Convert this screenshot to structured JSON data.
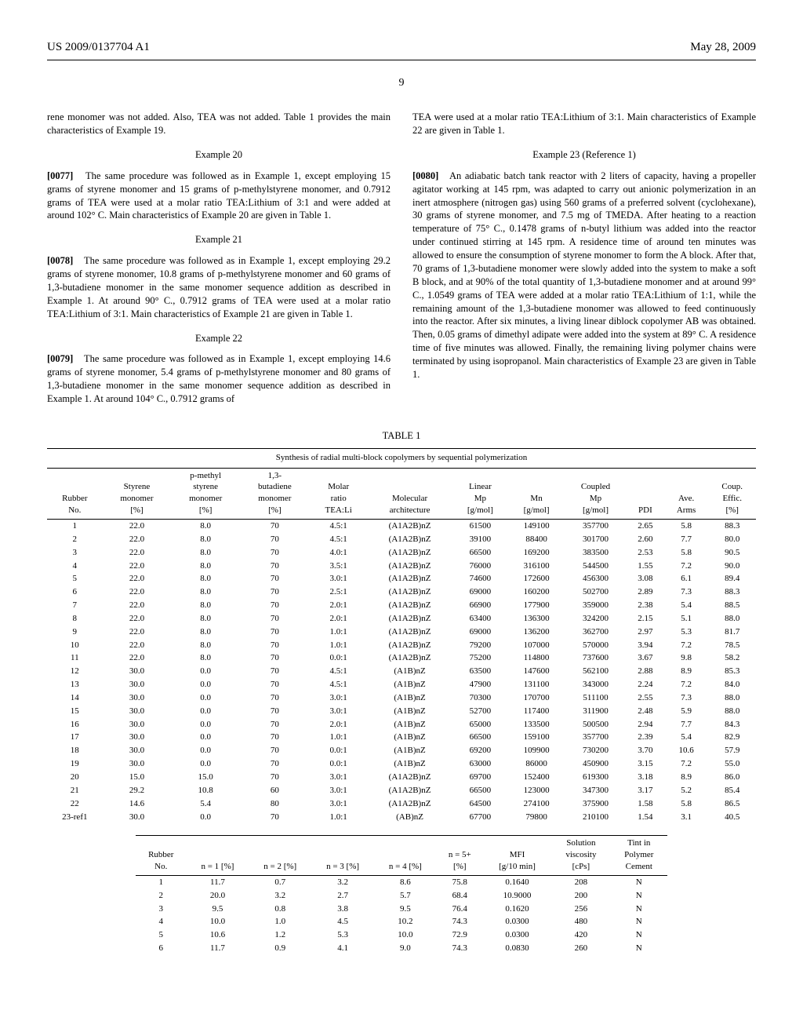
{
  "header": {
    "docno": "US 2009/0137704 A1",
    "date": "May 28, 2009",
    "pageno": "9"
  },
  "col1": {
    "intro": "rene monomer was not added. Also, TEA was not added. Table 1 provides the main characteristics of Example 19.",
    "ex20_title": "Example 20",
    "p77_num": "[0077]",
    "p77": "The same procedure was followed as in Example 1, except employing 15 grams of styrene monomer and 15 grams of p-methylstyrene monomer, and 0.7912 grams of TEA were used at a molar ratio TEA:Lithium of 3:1 and were added at around 102° C. Main characteristics of Example 20 are given in Table 1.",
    "ex21_title": "Example 21",
    "p78_num": "[0078]",
    "p78": "The same procedure was followed as in Example 1, except employing 29.2 grams of styrene monomer, 10.8 grams of p-methylstyrene monomer and 60 grams of 1,3-butadiene monomer in the same monomer sequence addition as described in Example 1. At around 90° C., 0.7912 grams of TEA were used at a molar ratio TEA:Lithium of 3:1. Main characteristics of Example 21 are given in Table 1.",
    "ex22_title": "Example 22",
    "p79_num": "[0079]",
    "p79": "The same procedure was followed as in Example 1, except employing 14.6 grams of styrene monomer, 5.4 grams of p-methylstyrene monomer and 80 grams of 1,3-butadiene monomer in the same monomer sequence addition as described in Example 1. At around 104° C., 0.7912 grams of"
  },
  "col2": {
    "intro": "TEA were used at a molar ratio TEA:Lithium of 3:1. Main characteristics of Example 22 are given in Table 1.",
    "ex23_title": "Example 23 (Reference 1)",
    "p80_num": "[0080]",
    "p80": "An adiabatic batch tank reactor with 2 liters of capacity, having a propeller agitator working at 145 rpm, was adapted to carry out anionic polymerization in an inert atmosphere (nitrogen gas) using 560 grams of a preferred solvent (cyclohexane), 30 grams of styrene monomer, and 7.5 mg of TMEDA. After heating to a reaction temperature of 75° C., 0.1478 grams of n-butyl lithium was added into the reactor under continued stirring at 145 rpm. A residence time of around ten minutes was allowed to ensure the consumption of styrene monomer to form the A block. After that, 70 grams of 1,3-butadiene monomer were slowly added into the system to make a soft B block, and at 90% of the total quantity of 1,3-butadiene monomer and at around 99° C., 1.0549 grams of TEA were added at a molar ratio TEA:Lithium of 1:1, while the remaining amount of the 1,3-butadiene monomer was allowed to feed continuously into the reactor. After six minutes, a living linear diblock copolymer AB was obtained. Then, 0.05 grams of dimethyl adipate were added into the system at 89° C. A residence time of five minutes was allowed. Finally, the remaining living polymer chains were terminated by using isopropanol. Main characteristics of Example 23 are given in Table 1."
  },
  "table1": {
    "label": "TABLE 1",
    "caption": "Synthesis of radial multi-block copolymers by sequential polymerization",
    "headers": [
      "Rubber\nNo.",
      "Styrene\nmonomer\n[%]",
      "p-methyl\nstyrene\nmonomer\n[%]",
      "1,3-\nbutadiene\nmonomer\n[%]",
      "Molar\nratio\nTEA:Li",
      "Molecular\narchitecture",
      "Linear\nMp\n[g/mol]",
      "Mn\n[g/mol]",
      "Coupled\nMp\n[g/mol]",
      "PDI",
      "Ave.\nArms",
      "Coup.\nEffic.\n[%]"
    ],
    "rows": [
      [
        "1",
        "22.0",
        "8.0",
        "70",
        "4.5:1",
        "(A1A2B)nZ",
        "61500",
        "149100",
        "357700",
        "2.65",
        "5.8",
        "88.3"
      ],
      [
        "2",
        "22.0",
        "8.0",
        "70",
        "4.5:1",
        "(A1A2B)nZ",
        "39100",
        "88400",
        "301700",
        "2.60",
        "7.7",
        "80.0"
      ],
      [
        "3",
        "22.0",
        "8.0",
        "70",
        "4.0:1",
        "(A1A2B)nZ",
        "66500",
        "169200",
        "383500",
        "2.53",
        "5.8",
        "90.5"
      ],
      [
        "4",
        "22.0",
        "8.0",
        "70",
        "3.5:1",
        "(A1A2B)nZ",
        "76000",
        "316100",
        "544500",
        "1.55",
        "7.2",
        "90.0"
      ],
      [
        "5",
        "22.0",
        "8.0",
        "70",
        "3.0:1",
        "(A1A2B)nZ",
        "74600",
        "172600",
        "456300",
        "3.08",
        "6.1",
        "89.4"
      ],
      [
        "6",
        "22.0",
        "8.0",
        "70",
        "2.5:1",
        "(A1A2B)nZ",
        "69000",
        "160200",
        "502700",
        "2.89",
        "7.3",
        "88.3"
      ],
      [
        "7",
        "22.0",
        "8.0",
        "70",
        "2.0:1",
        "(A1A2B)nZ",
        "66900",
        "177900",
        "359000",
        "2.38",
        "5.4",
        "88.5"
      ],
      [
        "8",
        "22.0",
        "8.0",
        "70",
        "2.0:1",
        "(A1A2B)nZ",
        "63400",
        "136300",
        "324200",
        "2.15",
        "5.1",
        "88.0"
      ],
      [
        "9",
        "22.0",
        "8.0",
        "70",
        "1.0:1",
        "(A1A2B)nZ",
        "69000",
        "136200",
        "362700",
        "2.97",
        "5.3",
        "81.7"
      ],
      [
        "10",
        "22.0",
        "8.0",
        "70",
        "1.0:1",
        "(A1A2B)nZ",
        "79200",
        "107000",
        "570000",
        "3.94",
        "7.2",
        "78.5"
      ],
      [
        "11",
        "22.0",
        "8.0",
        "70",
        "0.0:1",
        "(A1A2B)nZ",
        "75200",
        "114800",
        "737600",
        "3.67",
        "9.8",
        "58.2"
      ],
      [
        "12",
        "30.0",
        "0.0",
        "70",
        "4.5:1",
        "(A1B)nZ",
        "63500",
        "147600",
        "562100",
        "2.88",
        "8.9",
        "85.3"
      ],
      [
        "13",
        "30.0",
        "0.0",
        "70",
        "4.5:1",
        "(A1B)nZ",
        "47900",
        "131100",
        "343000",
        "2.24",
        "7.2",
        "84.0"
      ],
      [
        "14",
        "30.0",
        "0.0",
        "70",
        "3.0:1",
        "(A1B)nZ",
        "70300",
        "170700",
        "511100",
        "2.55",
        "7.3",
        "88.0"
      ],
      [
        "15",
        "30.0",
        "0.0",
        "70",
        "3.0:1",
        "(A1B)nZ",
        "52700",
        "117400",
        "311900",
        "2.48",
        "5.9",
        "88.0"
      ],
      [
        "16",
        "30.0",
        "0.0",
        "70",
        "2.0:1",
        "(A1B)nZ",
        "65000",
        "133500",
        "500500",
        "2.94",
        "7.7",
        "84.3"
      ],
      [
        "17",
        "30.0",
        "0.0",
        "70",
        "1.0:1",
        "(A1B)nZ",
        "66500",
        "159100",
        "357700",
        "2.39",
        "5.4",
        "82.9"
      ],
      [
        "18",
        "30.0",
        "0.0",
        "70",
        "0.0:1",
        "(A1B)nZ",
        "69200",
        "109900",
        "730200",
        "3.70",
        "10.6",
        "57.9"
      ],
      [
        "19",
        "30.0",
        "0.0",
        "70",
        "0.0:1",
        "(A1B)nZ",
        "63000",
        "86000",
        "450900",
        "3.15",
        "7.2",
        "55.0"
      ],
      [
        "20",
        "15.0",
        "15.0",
        "70",
        "3.0:1",
        "(A1A2B)nZ",
        "69700",
        "152400",
        "619300",
        "3.18",
        "8.9",
        "86.0"
      ],
      [
        "21",
        "29.2",
        "10.8",
        "60",
        "3.0:1",
        "(A1A2B)nZ",
        "66500",
        "123000",
        "347300",
        "3.17",
        "5.2",
        "85.4"
      ],
      [
        "22",
        "14.6",
        "5.4",
        "80",
        "3.0:1",
        "(A1A2B)nZ",
        "64500",
        "274100",
        "375900",
        "1.58",
        "5.8",
        "86.5"
      ],
      [
        "23-ref1",
        "30.0",
        "0.0",
        "70",
        "1.0:1",
        "(AB)nZ",
        "67700",
        "79800",
        "210100",
        "1.54",
        "3.1",
        "40.5"
      ]
    ]
  },
  "table2": {
    "headers": [
      "Rubber\nNo.",
      "n = 1 [%]",
      "n = 2 [%]",
      "n = 3 [%]",
      "n = 4 [%]",
      "n = 5+\n[%]",
      "MFI\n[g/10 min]",
      "Solution\nviscosity\n[cPs]",
      "Tint in\nPolymer\nCement"
    ],
    "rows": [
      [
        "1",
        "11.7",
        "0.7",
        "3.2",
        "8.6",
        "75.8",
        "0.1640",
        "208",
        "N"
      ],
      [
        "2",
        "20.0",
        "3.2",
        "2.7",
        "5.7",
        "68.4",
        "10.9000",
        "200",
        "N"
      ],
      [
        "3",
        "9.5",
        "0.8",
        "3.8",
        "9.5",
        "76.4",
        "0.1620",
        "256",
        "N"
      ],
      [
        "4",
        "10.0",
        "1.0",
        "4.5",
        "10.2",
        "74.3",
        "0.0300",
        "480",
        "N"
      ],
      [
        "5",
        "10.6",
        "1.2",
        "5.3",
        "10.0",
        "72.9",
        "0.0300",
        "420",
        "N"
      ],
      [
        "6",
        "11.7",
        "0.9",
        "4.1",
        "9.0",
        "74.3",
        "0.0830",
        "260",
        "N"
      ]
    ]
  }
}
